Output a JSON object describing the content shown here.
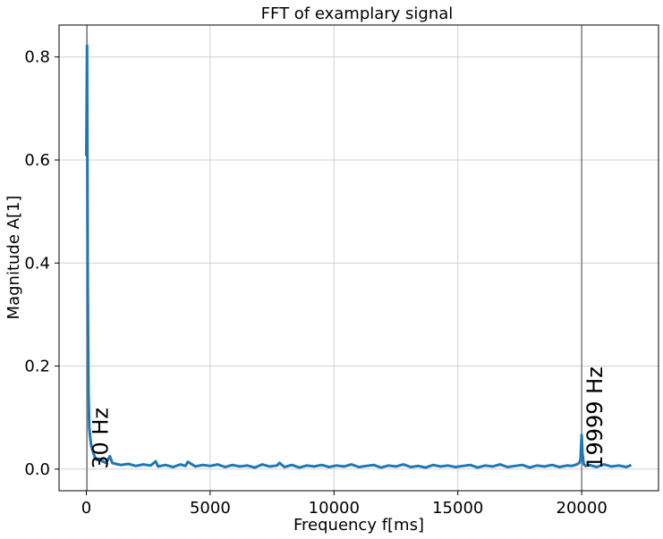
{
  "chart_data": {
    "type": "line",
    "title": "FFT of examplary signal",
    "xlabel": "Frequency f[ms]",
    "ylabel": "Magnitude A[1]",
    "xlim": [
      -1100,
      23100
    ],
    "ylim": [
      -0.042,
      0.862
    ],
    "xticks": [
      0,
      5000,
      10000,
      15000,
      20000
    ],
    "xtick_labels": [
      "0",
      "5000",
      "10000",
      "15000",
      "20000"
    ],
    "yticks": [
      0.0,
      0.2,
      0.4,
      0.6,
      0.8
    ],
    "ytick_labels": [
      "0.0",
      "0.2",
      "0.4",
      "0.6",
      "0.8"
    ],
    "grid": true,
    "series": [
      {
        "color": "#1f77b4",
        "x": [
          0,
          30,
          60,
          90,
          120,
          160,
          200,
          260,
          330,
          420,
          520,
          650,
          800,
          950,
          1050,
          1200,
          1400,
          1700,
          2000,
          2300,
          2600,
          2800,
          2900,
          3200,
          3500,
          3800,
          4000,
          4100,
          4400,
          4700,
          5000,
          5300,
          5600,
          5900,
          6200,
          6500,
          6800,
          7100,
          7400,
          7700,
          7800,
          8000,
          8300,
          8600,
          8900,
          9200,
          9500,
          9800,
          10100,
          10400,
          10700,
          11000,
          11300,
          11600,
          11900,
          12200,
          12500,
          12800,
          13100,
          13400,
          13700,
          14000,
          14300,
          14600,
          14900,
          15200,
          15500,
          15800,
          16100,
          16400,
          16700,
          17000,
          17300,
          17600,
          17900,
          18200,
          18500,
          18800,
          19100,
          19400,
          19600,
          19800,
          19900,
          19950,
          19999,
          20030,
          20080,
          20150,
          20300,
          20600,
          20900,
          21200,
          21500,
          21800,
          22000
        ],
        "y": [
          0.608,
          0.822,
          0.35,
          0.15,
          0.08,
          0.06,
          0.045,
          0.035,
          0.025,
          0.018,
          0.02,
          0.015,
          0.012,
          0.025,
          0.012,
          0.01,
          0.008,
          0.01,
          0.006,
          0.009,
          0.007,
          0.015,
          0.005,
          0.008,
          0.004,
          0.009,
          0.006,
          0.014,
          0.005,
          0.008,
          0.006,
          0.009,
          0.004,
          0.008,
          0.005,
          0.007,
          0.003,
          0.009,
          0.005,
          0.007,
          0.012,
          0.004,
          0.008,
          0.003,
          0.007,
          0.005,
          0.008,
          0.004,
          0.007,
          0.005,
          0.009,
          0.004,
          0.006,
          0.008,
          0.003,
          0.007,
          0.005,
          0.009,
          0.004,
          0.006,
          0.003,
          0.008,
          0.005,
          0.007,
          0.004,
          0.006,
          0.008,
          0.003,
          0.007,
          0.005,
          0.009,
          0.004,
          0.006,
          0.008,
          0.003,
          0.007,
          0.005,
          0.008,
          0.004,
          0.007,
          0.006,
          0.009,
          0.012,
          0.018,
          0.066,
          0.03,
          0.01,
          0.006,
          0.008,
          0.004,
          0.009,
          0.005,
          0.007,
          0.004,
          0.008
        ]
      }
    ],
    "vlines": [
      {
        "x": 30,
        "label": "30 Hz",
        "color": "#808080"
      },
      {
        "x": 19999,
        "label": "19999 Hz",
        "color": "#808080"
      }
    ]
  }
}
